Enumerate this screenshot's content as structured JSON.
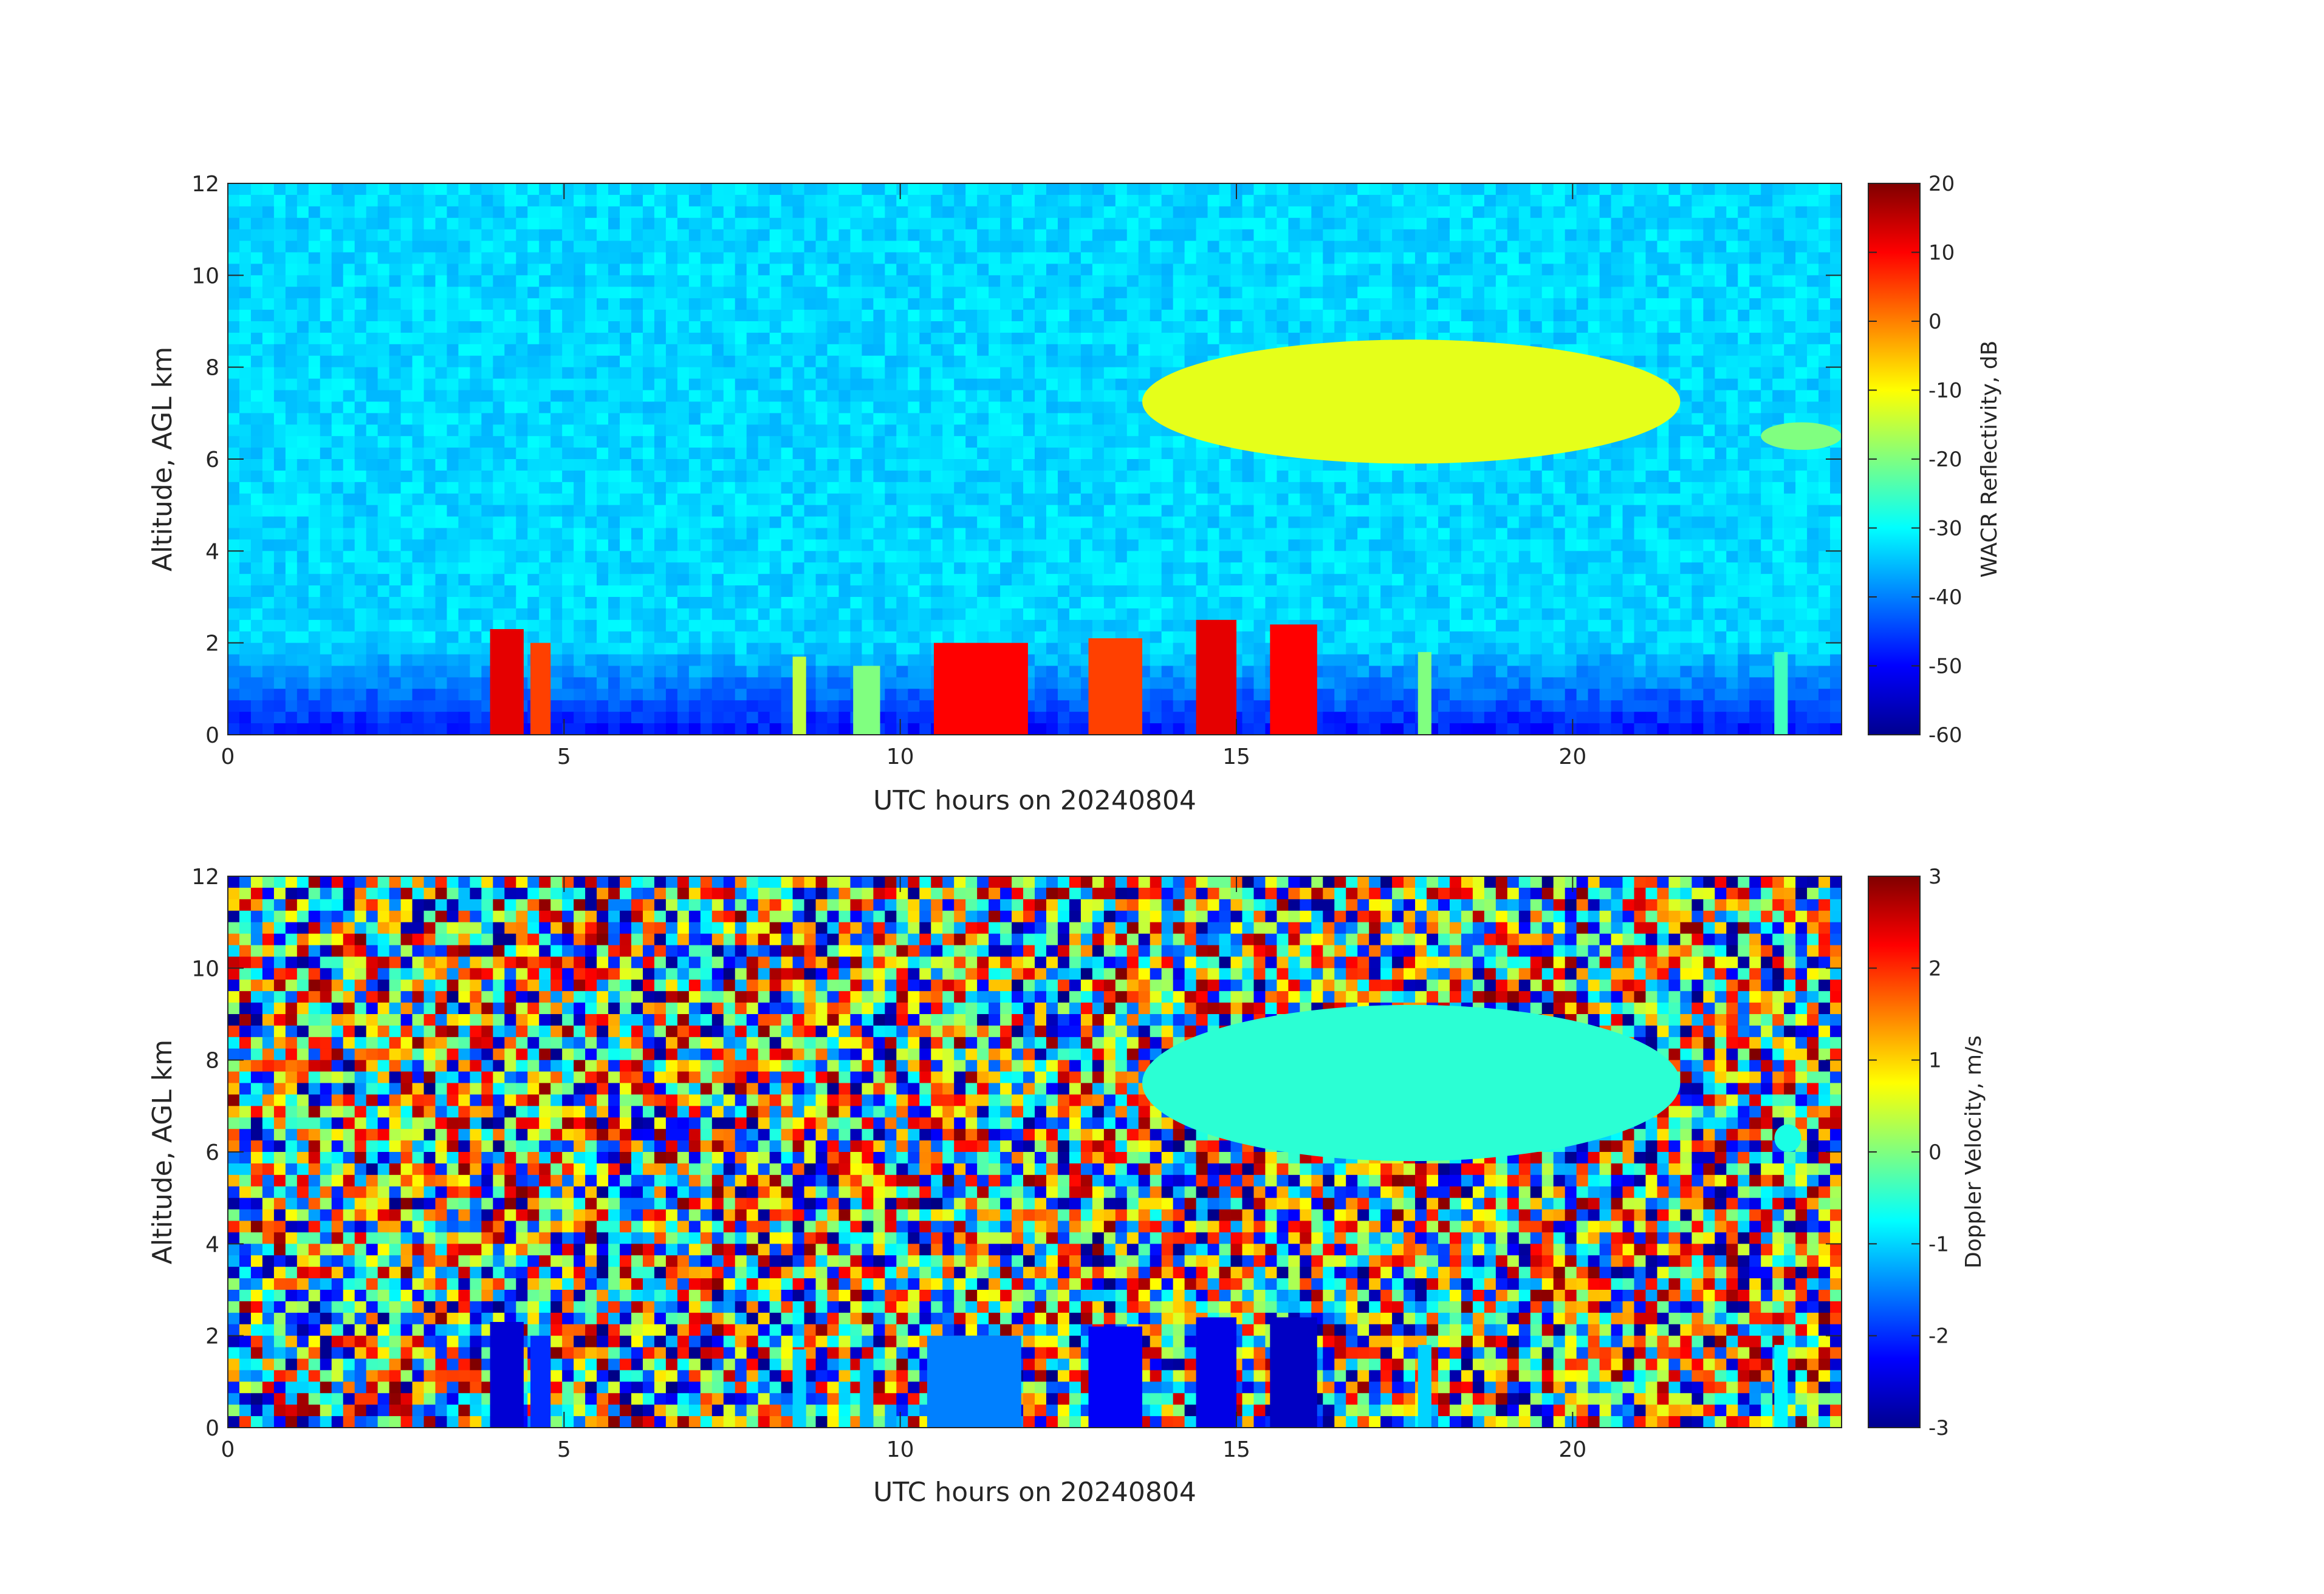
{
  "chart_data": [
    {
      "type": "heatmap",
      "title": "",
      "xlabel": "UTC hours on 20240804",
      "ylabel": "Altitude, AGL km",
      "xlim": [
        0,
        24
      ],
      "ylim": [
        0,
        12
      ],
      "xticks": [
        "0",
        "5",
        "10",
        "15",
        "20"
      ],
      "yticks": [
        "0",
        "2",
        "4",
        "6",
        "8",
        "10",
        "12"
      ],
      "colorbar": {
        "label": "WACR Reflectivity, dB",
        "colormap": "jet",
        "range": [
          -60,
          20
        ],
        "ticks": [
          "20",
          "10",
          "0",
          "-10",
          "-20",
          "-30",
          "-40",
          "-50",
          "-60"
        ]
      },
      "background": {
        "description_value_db": -35,
        "near_surface_db": -55
      },
      "features": [
        {
          "kind": "high_cloud",
          "x": [
            13.6,
            21.6
          ],
          "y": [
            5.9,
            8.6
          ],
          "value_db": -12
        },
        {
          "kind": "high_cloud",
          "x": [
            22.8,
            24.0
          ],
          "y": [
            6.2,
            6.8
          ],
          "value_db": -20
        },
        {
          "kind": "low_cloud",
          "x": [
            3.9,
            4.4
          ],
          "y": [
            0.0,
            2.3
          ],
          "value_db": 12
        },
        {
          "kind": "low_cloud",
          "x": [
            4.5,
            4.8
          ],
          "y": [
            0.0,
            2.0
          ],
          "value_db": 5
        },
        {
          "kind": "low_cloud",
          "x": [
            10.5,
            11.9
          ],
          "y": [
            0.0,
            2.0
          ],
          "value_db": 10
        },
        {
          "kind": "low_cloud",
          "x": [
            12.8,
            13.6
          ],
          "y": [
            0.0,
            2.1
          ],
          "value_db": 5
        },
        {
          "kind": "low_cloud",
          "x": [
            14.4,
            15.0
          ],
          "y": [
            0.0,
            2.5
          ],
          "value_db": 12
        },
        {
          "kind": "low_cloud",
          "x": [
            15.5,
            16.2
          ],
          "y": [
            0.0,
            2.4
          ],
          "value_db": 10
        },
        {
          "kind": "low_cloud",
          "x": [
            8.4,
            8.6
          ],
          "y": [
            0.0,
            1.7
          ],
          "value_db": -15
        },
        {
          "kind": "low_cloud",
          "x": [
            9.3,
            9.7
          ],
          "y": [
            0.0,
            1.5
          ],
          "value_db": -20
        },
        {
          "kind": "low_cloud",
          "x": [
            17.7,
            17.9
          ],
          "y": [
            0.0,
            1.8
          ],
          "value_db": -20
        },
        {
          "kind": "low_cloud",
          "x": [
            23.0,
            23.2
          ],
          "y": [
            0.0,
            1.8
          ],
          "value_db": -25
        }
      ]
    },
    {
      "type": "heatmap",
      "title": "",
      "xlabel": "UTC hours on 20240804",
      "ylabel": "Altitude, AGL km",
      "xlim": [
        0,
        24
      ],
      "ylim": [
        0,
        12
      ],
      "xticks": [
        "0",
        "5",
        "10",
        "15",
        "20"
      ],
      "yticks": [
        "0",
        "2",
        "4",
        "6",
        "8",
        "10",
        "12"
      ],
      "colorbar": {
        "label": "Doppler Velocity, m/s",
        "colormap": "jet",
        "range": [
          -3,
          3
        ],
        "ticks": [
          "3",
          "2",
          "1",
          "0",
          "-1",
          "-2",
          "-3"
        ]
      },
      "background": {
        "description": "random noise spanning full range"
      },
      "features": [
        {
          "kind": "high_cloud",
          "x": [
            13.6,
            21.6
          ],
          "y": [
            5.8,
            9.2
          ],
          "value_ms": -0.5
        },
        {
          "kind": "high_cloud",
          "x": [
            23.0,
            23.4
          ],
          "y": [
            6.0,
            6.6
          ],
          "value_ms": -0.6
        },
        {
          "kind": "low_cloud",
          "x": [
            3.9,
            4.4
          ],
          "y": [
            0.0,
            2.3
          ],
          "value_ms": -2.5
        },
        {
          "kind": "low_cloud",
          "x": [
            4.5,
            4.8
          ],
          "y": [
            0.0,
            2.0
          ],
          "value_ms": -2.0
        },
        {
          "kind": "low_cloud",
          "x": [
            10.4,
            11.8
          ],
          "y": [
            0.0,
            2.0
          ],
          "value_ms": -1.5
        },
        {
          "kind": "low_cloud",
          "x": [
            12.8,
            13.6
          ],
          "y": [
            0.0,
            2.2
          ],
          "value_ms": -2.3
        },
        {
          "kind": "low_cloud",
          "x": [
            14.4,
            15.0
          ],
          "y": [
            0.0,
            2.4
          ],
          "value_ms": -2.4
        },
        {
          "kind": "low_cloud",
          "x": [
            15.5,
            16.2
          ],
          "y": [
            0.0,
            2.4
          ],
          "value_ms": -2.6
        },
        {
          "kind": "low_cloud",
          "x": [
            8.4,
            8.6
          ],
          "y": [
            0.0,
            1.7
          ],
          "value_ms": -1.0
        },
        {
          "kind": "low_cloud",
          "x": [
            9.4,
            9.6
          ],
          "y": [
            0.0,
            1.5
          ],
          "value_ms": -1.2
        },
        {
          "kind": "low_cloud",
          "x": [
            17.7,
            17.9
          ],
          "y": [
            0.0,
            1.8
          ],
          "value_ms": -1.0
        },
        {
          "kind": "low_cloud",
          "x": [
            23.0,
            23.2
          ],
          "y": [
            0.0,
            1.8
          ],
          "value_ms": -0.8
        }
      ]
    }
  ]
}
